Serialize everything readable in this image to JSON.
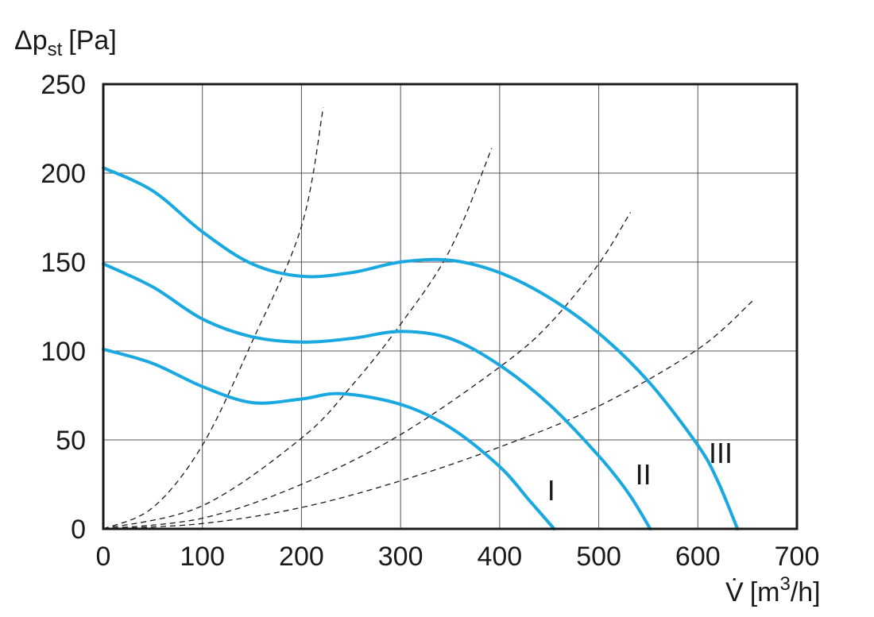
{
  "chart_data": {
    "type": "line",
    "ylabel": {
      "symbol": "Δp",
      "subscript": "st",
      "unit": "[Pa]"
    },
    "xlabel": {
      "symbol": "V̇",
      "unit_open": "[m",
      "unit_sup": "3",
      "unit_close": "/h]"
    },
    "xlim": [
      0,
      700
    ],
    "ylim": [
      0,
      250
    ],
    "x_ticks": [
      0,
      100,
      200,
      300,
      400,
      500,
      600,
      700
    ],
    "y_ticks": [
      0,
      50,
      100,
      150,
      200,
      250
    ],
    "grid": true,
    "series": [
      {
        "name": "I",
        "color": "#19a8e0",
        "style": "solid",
        "points": [
          [
            0,
            101
          ],
          [
            50,
            93
          ],
          [
            100,
            80
          ],
          [
            150,
            71
          ],
          [
            200,
            73
          ],
          [
            240,
            76
          ],
          [
            300,
            70
          ],
          [
            350,
            57
          ],
          [
            400,
            35
          ],
          [
            430,
            16
          ],
          [
            455,
            0
          ]
        ]
      },
      {
        "name": "II",
        "color": "#19a8e0",
        "style": "solid",
        "points": [
          [
            0,
            149
          ],
          [
            50,
            136
          ],
          [
            100,
            118
          ],
          [
            150,
            108
          ],
          [
            200,
            105
          ],
          [
            250,
            107
          ],
          [
            300,
            111
          ],
          [
            350,
            107
          ],
          [
            400,
            92
          ],
          [
            450,
            70
          ],
          [
            500,
            41
          ],
          [
            530,
            20
          ],
          [
            552,
            0
          ]
        ]
      },
      {
        "name": "III",
        "color": "#19a8e0",
        "style": "solid",
        "points": [
          [
            0,
            203
          ],
          [
            50,
            190
          ],
          [
            100,
            167
          ],
          [
            150,
            149
          ],
          [
            200,
            142
          ],
          [
            250,
            144
          ],
          [
            300,
            150
          ],
          [
            350,
            151
          ],
          [
            400,
            144
          ],
          [
            450,
            130
          ],
          [
            500,
            110
          ],
          [
            550,
            83
          ],
          [
            600,
            47
          ],
          [
            620,
            27
          ],
          [
            640,
            0
          ]
        ]
      },
      {
        "name": "",
        "color": "#1a1a1a",
        "style": "dashed",
        "points": [
          [
            0,
            0
          ],
          [
            50,
            12
          ],
          [
            100,
            47
          ],
          [
            150,
            105
          ],
          [
            200,
            170
          ],
          [
            222,
            237
          ]
        ]
      },
      {
        "name": "",
        "color": "#1a1a1a",
        "style": "dashed",
        "points": [
          [
            0,
            0
          ],
          [
            100,
            13
          ],
          [
            200,
            51
          ],
          [
            250,
            80
          ],
          [
            300,
            115
          ],
          [
            350,
            157
          ],
          [
            392,
            214
          ]
        ]
      },
      {
        "name": "",
        "color": "#1a1a1a",
        "style": "dashed",
        "points": [
          [
            0,
            0
          ],
          [
            100,
            6
          ],
          [
            200,
            25
          ],
          [
            300,
            53
          ],
          [
            400,
            91
          ],
          [
            450,
            115
          ],
          [
            500,
            149
          ],
          [
            532,
            178
          ]
        ]
      },
      {
        "name": "",
        "color": "#1a1a1a",
        "style": "dashed",
        "points": [
          [
            0,
            0
          ],
          [
            100,
            3
          ],
          [
            200,
            12
          ],
          [
            300,
            27
          ],
          [
            400,
            46
          ],
          [
            500,
            69
          ],
          [
            600,
            101
          ],
          [
            655,
            128
          ]
        ]
      }
    ],
    "curve_labels": [
      {
        "text": "I",
        "x": 452,
        "y": 16
      },
      {
        "text": "II",
        "x": 545,
        "y": 25
      },
      {
        "text": "III",
        "x": 623,
        "y": 37
      }
    ]
  }
}
